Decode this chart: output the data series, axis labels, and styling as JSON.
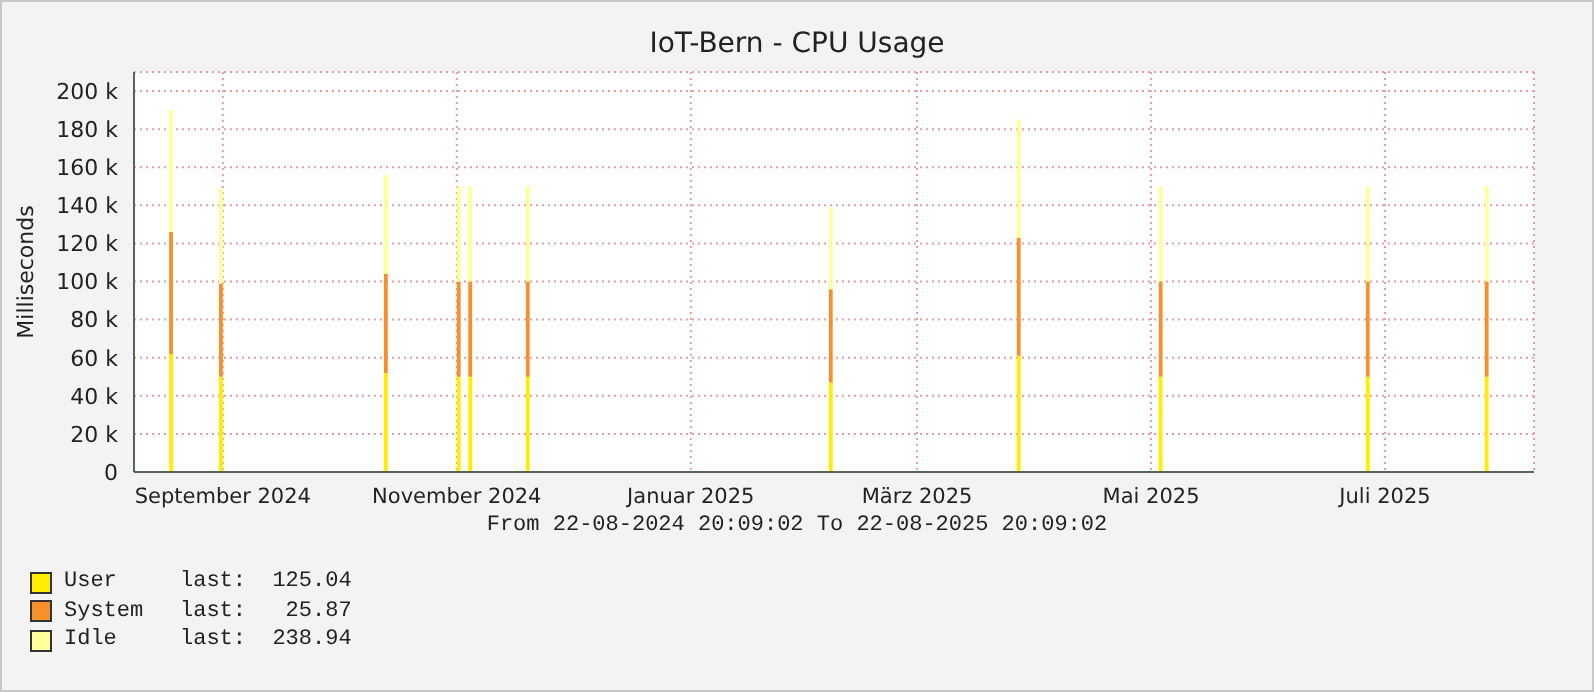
{
  "chart_data": {
    "type": "area",
    "title": "IoT-Bern - CPU Usage",
    "ylabel": "Milliseconds",
    "stacked": true,
    "grid": true,
    "legend": "bottom left",
    "annotations": [
      "From 22-08-2024 20:09:02 To 22-08-2025 20:09:02",
      "last:  125.04",
      "last:   25.87",
      "last:  238.94"
    ],
    "xlim": [
      "2024-08-22T20:09",
      "2025-08-22T20:09"
    ],
    "xticks": [
      {
        "value": "2024-09-15",
        "label": "September 2024"
      },
      {
        "value": "2024-11-15",
        "label": "November 2024"
      },
      {
        "value": "2025-01-15",
        "label": "Januar 2025"
      },
      {
        "value": "2025-03-15",
        "label": "März 2025"
      },
      {
        "value": "2025-05-15",
        "label": "Mai 2025"
      },
      {
        "value": "2025-07-15",
        "label": "Juli 2025"
      }
    ],
    "ylim": [
      0,
      210000
    ],
    "yticks": [
      {
        "value": 0,
        "label": "0"
      },
      {
        "value": 20000,
        "label": "20 k"
      },
      {
        "value": 40000,
        "label": "40 k"
      },
      {
        "value": 60000,
        "label": "60 k"
      },
      {
        "value": 80000,
        "label": "80 k"
      },
      {
        "value": 100000,
        "label": "100 k"
      },
      {
        "value": 120000,
        "label": "120 k"
      },
      {
        "value": 140000,
        "label": "140 k"
      },
      {
        "value": 160000,
        "label": "160 k"
      },
      {
        "value": 180000,
        "label": "180 k"
      },
      {
        "value": 200000,
        "label": "200 k"
      }
    ],
    "x": [
      "2024-08-23",
      "2024-08-31",
      "2024-09-01",
      "2024-09-02",
      "2024-09-13",
      "2024-09-14",
      "2024-09-15",
      "2024-10-26",
      "2024-10-27",
      "2024-10-28",
      "2024-11-14",
      "2024-11-15",
      "2024-11-16",
      "2024-11-17",
      "2024-11-18",
      "2024-11-19",
      "2024-12-02",
      "2024-12-03",
      "2024-12-04",
      "2025-02-19",
      "2025-02-20",
      "2025-02-21",
      "2025-04-09",
      "2025-04-10",
      "2025-04-11",
      "2025-05-16",
      "2025-05-17",
      "2025-05-18",
      "2025-07-09",
      "2025-07-10",
      "2025-07-11",
      "2025-08-09",
      "2025-08-10",
      "2025-08-11",
      "2025-08-22"
    ],
    "series": [
      {
        "name": "User",
        "color": "#ffee00",
        "values": [
          0,
          0,
          62000,
          0,
          0,
          50000,
          0,
          0,
          52000,
          0,
          0,
          50000,
          0,
          0,
          50000,
          0,
          0,
          50000,
          0,
          0,
          47000,
          0,
          0,
          61000,
          0,
          0,
          50000,
          0,
          0,
          50000,
          0,
          0,
          50000,
          0,
          0
        ]
      },
      {
        "name": "System",
        "color": "#f7902a",
        "values": [
          0,
          0,
          64000,
          0,
          0,
          49000,
          0,
          0,
          52000,
          0,
          0,
          50000,
          0,
          0,
          50000,
          0,
          0,
          50000,
          0,
          0,
          49000,
          0,
          0,
          62000,
          0,
          0,
          50000,
          0,
          0,
          50000,
          0,
          0,
          50000,
          0,
          0
        ]
      },
      {
        "name": "Idle",
        "color": "#ffff99",
        "values": [
          0,
          0,
          64000,
          0,
          0,
          50000,
          0,
          0,
          52000,
          0,
          0,
          50000,
          0,
          0,
          50000,
          0,
          0,
          50000,
          0,
          0,
          43000,
          0,
          0,
          62000,
          0,
          0,
          50000,
          0,
          0,
          50000,
          0,
          0,
          50000,
          0,
          0
        ]
      }
    ]
  }
}
